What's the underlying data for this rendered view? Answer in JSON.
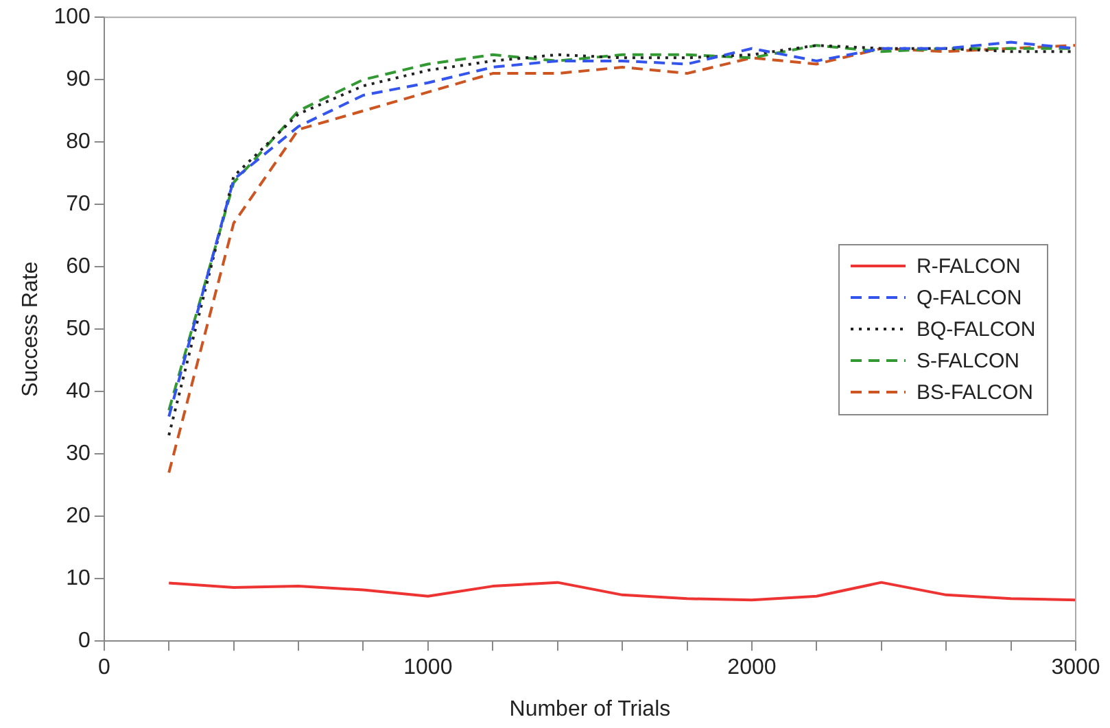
{
  "chart_data": {
    "type": "line",
    "xlabel": "Number of Trials",
    "ylabel": "Success Rate",
    "x": [
      200,
      400,
      600,
      800,
      1000,
      1200,
      1400,
      1600,
      1800,
      2000,
      2200,
      2400,
      2600,
      2800,
      3000
    ],
    "series": [
      {
        "name": "R-FALCON",
        "color": "#ee3333",
        "line_style": "solid",
        "values": [
          9.3,
          8.6,
          8.8,
          8.2,
          7.2,
          8.8,
          9.4,
          7.4,
          6.8,
          6.6,
          7.2,
          9.4,
          7.4,
          6.8,
          6.6
        ]
      },
      {
        "name": "Q-FALCON",
        "color": "#3355ee",
        "line_style": "dashed",
        "values": [
          36,
          74,
          82.5,
          87.5,
          89.5,
          92,
          93,
          93,
          92.5,
          95,
          93,
          95,
          95,
          96,
          95
        ]
      },
      {
        "name": "BQ-FALCON",
        "color": "#222222",
        "line_style": "dotted",
        "values": [
          33,
          74.5,
          84.5,
          89,
          91.5,
          93,
          94,
          93.5,
          93.5,
          94,
          95.5,
          95,
          95,
          94.5,
          94.5
        ]
      },
      {
        "name": "S-FALCON",
        "color": "#339933",
        "line_style": "dashed",
        "values": [
          37,
          73.5,
          85,
          90,
          92.5,
          94,
          93,
          94,
          94,
          93.5,
          95.5,
          94.5,
          95,
          95,
          95
        ]
      },
      {
        "name": "BS-FALCON",
        "color": "#cc5522",
        "line_style": "dashed",
        "values": [
          27,
          67,
          82,
          85,
          88,
          91,
          91,
          92,
          91,
          93.5,
          92.5,
          95,
          94.5,
          95,
          95.5
        ]
      }
    ],
    "xlim": [
      0,
      3000
    ],
    "ylim": [
      0,
      100
    ],
    "xticks": [
      0,
      {
        "value": 200,
        "label": null
      },
      {
        "value": 400,
        "label": null
      },
      {
        "value": 600,
        "label": null
      },
      {
        "value": 800,
        "label": null
      },
      1000,
      {
        "value": 1200,
        "label": null
      },
      {
        "value": 1400,
        "label": null
      },
      {
        "value": 1600,
        "label": null
      },
      {
        "value": 1800,
        "label": null
      },
      2000,
      {
        "value": 2200,
        "label": null
      },
      {
        "value": 2400,
        "label": null
      },
      {
        "value": 2600,
        "label": null
      },
      {
        "value": 2800,
        "label": null
      },
      3000
    ],
    "yticks": [
      0,
      10,
      20,
      30,
      40,
      50,
      60,
      70,
      80,
      90,
      100
    ],
    "grid": false,
    "legend": "right",
    "marker": "none"
  }
}
